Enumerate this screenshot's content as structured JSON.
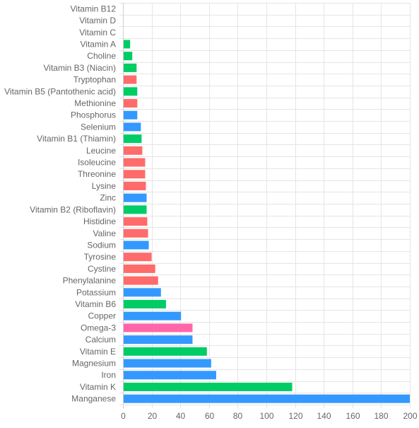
{
  "colors": {
    "amino_acid": "#ff6b6b",
    "mineral": "#3399ff",
    "vitamin": "#00cc66",
    "omega": "#ff66aa",
    "grid": "#e5e5e5",
    "axis_text": "#666666"
  },
  "chart_data": {
    "type": "bar",
    "orientation": "horizontal",
    "title": "",
    "xlabel": "",
    "ylabel": "",
    "xlim": [
      0,
      200
    ],
    "xticks": [
      0,
      20,
      40,
      60,
      80,
      100,
      120,
      140,
      160,
      180,
      200
    ],
    "grid": true,
    "legend": "none",
    "categories": [
      "Vitamin B12",
      "Vitamin D",
      "Vitamin C",
      "Vitamin A",
      "Choline",
      "Vitamin B3 (Niacin)",
      "Tryptophan",
      "Vitamin B5 (Pantothenic acid)",
      "Methionine",
      "Phosphorus",
      "Selenium",
      "Vitamin B1 (Thiamin)",
      "Leucine",
      "Isoleucine",
      "Threonine",
      "Lysine",
      "Zinc",
      "Vitamin B2 (Riboflavin)",
      "Histidine",
      "Valine",
      "Sodium",
      "Tyrosine",
      "Cystine",
      "Phenylalanine",
      "Potassium",
      "Vitamin B6",
      "Copper",
      "Omega-3",
      "Calcium",
      "Vitamin E",
      "Magnesium",
      "Iron",
      "Vitamin K",
      "Manganese"
    ],
    "values": [
      0,
      0,
      0,
      5,
      6.5,
      9.5,
      9.5,
      10,
      10,
      10,
      12.5,
      13,
      13.5,
      15.5,
      15.5,
      16,
      16.5,
      16.5,
      17,
      17.5,
      18,
      20,
      22.5,
      24.5,
      26.5,
      30,
      40.5,
      48.5,
      48.5,
      58.5,
      61.5,
      65,
      118,
      200
    ],
    "groups": [
      "vitamin",
      "vitamin",
      "vitamin",
      "vitamin",
      "vitamin",
      "vitamin",
      "amino_acid",
      "vitamin",
      "amino_acid",
      "mineral",
      "mineral",
      "vitamin",
      "amino_acid",
      "amino_acid",
      "amino_acid",
      "amino_acid",
      "mineral",
      "vitamin",
      "amino_acid",
      "amino_acid",
      "mineral",
      "amino_acid",
      "amino_acid",
      "amino_acid",
      "mineral",
      "vitamin",
      "mineral",
      "omega",
      "mineral",
      "vitamin",
      "mineral",
      "mineral",
      "vitamin",
      "mineral"
    ]
  }
}
